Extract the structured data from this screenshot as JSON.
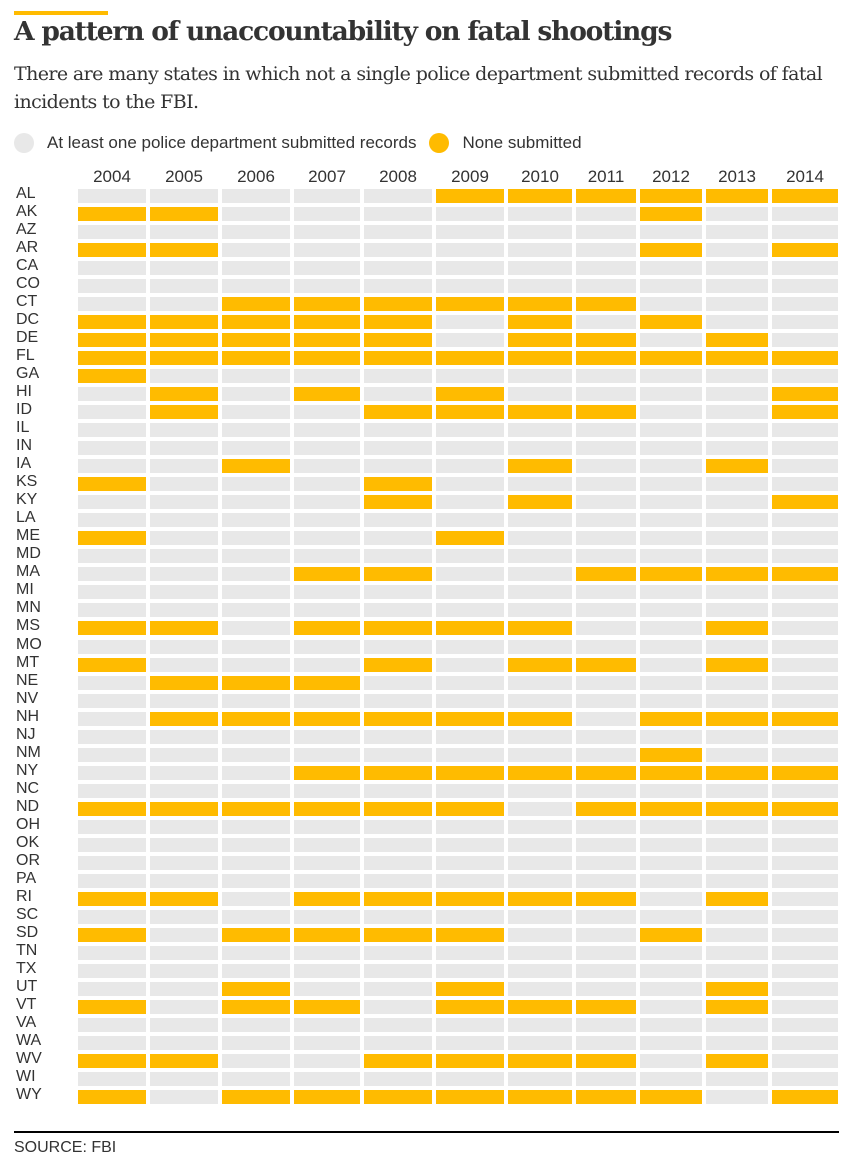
{
  "header": {
    "title": "A pattern of unaccountability on fatal shootings",
    "subtitle": "There are many states in which not a single police department submitted records of fatal incidents to the FBI."
  },
  "legend": {
    "items": [
      {
        "label": "At least one police department submitted records",
        "color": "#e8e8e8"
      },
      {
        "label": "None submitted",
        "color": "#ffbb00"
      }
    ]
  },
  "footer": {
    "source": "SOURCE: FBI"
  },
  "colors": {
    "submitted": "#e8e8e8",
    "none_submitted": "#ffbb00",
    "accent": "#ffbb00"
  },
  "chart_data": {
    "type": "heatmap",
    "title": "A pattern of unaccountability on fatal shootings",
    "subtitle": "There are many states in which not a single police department submitted records of fatal incidents to the FBI.",
    "xlabel": "",
    "ylabel": "",
    "legend_position": "top-left",
    "value_legend": {
      "0": "At least one police department submitted records",
      "1": "None submitted"
    },
    "x": [
      "2004",
      "2005",
      "2006",
      "2007",
      "2008",
      "2009",
      "2010",
      "2011",
      "2012",
      "2013",
      "2014"
    ],
    "y": [
      "AL",
      "AK",
      "AZ",
      "AR",
      "CA",
      "CO",
      "CT",
      "DC",
      "DE",
      "FL",
      "GA",
      "HI",
      "ID",
      "IL",
      "IN",
      "IA",
      "KS",
      "KY",
      "LA",
      "ME",
      "MD",
      "MA",
      "MI",
      "MN",
      "MS",
      "MO",
      "MT",
      "NE",
      "NV",
      "NH",
      "NJ",
      "NM",
      "NY",
      "NC",
      "ND",
      "OH",
      "OK",
      "OR",
      "PA",
      "RI",
      "SC",
      "SD",
      "TN",
      "TX",
      "UT",
      "VT",
      "VA",
      "WA",
      "WV",
      "WI",
      "WY"
    ],
    "values": [
      [
        0,
        0,
        0,
        0,
        0,
        1,
        1,
        1,
        1,
        1,
        1
      ],
      [
        1,
        1,
        0,
        0,
        0,
        0,
        0,
        0,
        1,
        0,
        0
      ],
      [
        0,
        0,
        0,
        0,
        0,
        0,
        0,
        0,
        0,
        0,
        0
      ],
      [
        1,
        1,
        0,
        0,
        0,
        0,
        0,
        0,
        1,
        0,
        1
      ],
      [
        0,
        0,
        0,
        0,
        0,
        0,
        0,
        0,
        0,
        0,
        0
      ],
      [
        0,
        0,
        0,
        0,
        0,
        0,
        0,
        0,
        0,
        0,
        0
      ],
      [
        0,
        0,
        1,
        1,
        1,
        1,
        1,
        1,
        0,
        0,
        0
      ],
      [
        1,
        1,
        1,
        1,
        1,
        0,
        1,
        0,
        1,
        0,
        0
      ],
      [
        1,
        1,
        1,
        1,
        1,
        0,
        1,
        1,
        0,
        1,
        0
      ],
      [
        1,
        1,
        1,
        1,
        1,
        1,
        1,
        1,
        1,
        1,
        1
      ],
      [
        1,
        0,
        0,
        0,
        0,
        0,
        0,
        0,
        0,
        0,
        0
      ],
      [
        0,
        1,
        0,
        1,
        0,
        1,
        0,
        0,
        0,
        0,
        1
      ],
      [
        0,
        1,
        0,
        0,
        1,
        1,
        1,
        1,
        0,
        0,
        1
      ],
      [
        0,
        0,
        0,
        0,
        0,
        0,
        0,
        0,
        0,
        0,
        0
      ],
      [
        0,
        0,
        0,
        0,
        0,
        0,
        0,
        0,
        0,
        0,
        0
      ],
      [
        0,
        0,
        1,
        0,
        0,
        0,
        1,
        0,
        0,
        1,
        0
      ],
      [
        1,
        0,
        0,
        0,
        1,
        0,
        0,
        0,
        0,
        0,
        0
      ],
      [
        0,
        0,
        0,
        0,
        1,
        0,
        1,
        0,
        0,
        0,
        1
      ],
      [
        0,
        0,
        0,
        0,
        0,
        0,
        0,
        0,
        0,
        0,
        0
      ],
      [
        1,
        0,
        0,
        0,
        0,
        1,
        0,
        0,
        0,
        0,
        0
      ],
      [
        0,
        0,
        0,
        0,
        0,
        0,
        0,
        0,
        0,
        0,
        0
      ],
      [
        0,
        0,
        0,
        1,
        1,
        0,
        0,
        1,
        1,
        1,
        1
      ],
      [
        0,
        0,
        0,
        0,
        0,
        0,
        0,
        0,
        0,
        0,
        0
      ],
      [
        0,
        0,
        0,
        0,
        0,
        0,
        0,
        0,
        0,
        0,
        0
      ],
      [
        1,
        1,
        0,
        1,
        1,
        1,
        1,
        0,
        0,
        1,
        0
      ],
      [
        0,
        0,
        0,
        0,
        0,
        0,
        0,
        0,
        0,
        0,
        0
      ],
      [
        1,
        0,
        0,
        0,
        1,
        0,
        1,
        1,
        0,
        1,
        0
      ],
      [
        0,
        1,
        1,
        1,
        0,
        0,
        0,
        0,
        0,
        0,
        0
      ],
      [
        0,
        0,
        0,
        0,
        0,
        0,
        0,
        0,
        0,
        0,
        0
      ],
      [
        0,
        1,
        1,
        1,
        1,
        1,
        1,
        0,
        1,
        1,
        1
      ],
      [
        0,
        0,
        0,
        0,
        0,
        0,
        0,
        0,
        0,
        0,
        0
      ],
      [
        0,
        0,
        0,
        0,
        0,
        0,
        0,
        0,
        1,
        0,
        0
      ],
      [
        0,
        0,
        0,
        1,
        1,
        1,
        1,
        1,
        1,
        1,
        1
      ],
      [
        0,
        0,
        0,
        0,
        0,
        0,
        0,
        0,
        0,
        0,
        0
      ],
      [
        1,
        1,
        1,
        1,
        1,
        1,
        0,
        1,
        1,
        1,
        1
      ],
      [
        0,
        0,
        0,
        0,
        0,
        0,
        0,
        0,
        0,
        0,
        0
      ],
      [
        0,
        0,
        0,
        0,
        0,
        0,
        0,
        0,
        0,
        0,
        0
      ],
      [
        0,
        0,
        0,
        0,
        0,
        0,
        0,
        0,
        0,
        0,
        0
      ],
      [
        0,
        0,
        0,
        0,
        0,
        0,
        0,
        0,
        0,
        0,
        0
      ],
      [
        1,
        1,
        0,
        1,
        1,
        1,
        1,
        1,
        0,
        1,
        0
      ],
      [
        0,
        0,
        0,
        0,
        0,
        0,
        0,
        0,
        0,
        0,
        0
      ],
      [
        1,
        0,
        1,
        1,
        1,
        1,
        0,
        0,
        1,
        0,
        0
      ],
      [
        0,
        0,
        0,
        0,
        0,
        0,
        0,
        0,
        0,
        0,
        0
      ],
      [
        0,
        0,
        0,
        0,
        0,
        0,
        0,
        0,
        0,
        0,
        0
      ],
      [
        0,
        0,
        1,
        0,
        0,
        1,
        0,
        0,
        0,
        1,
        0
      ],
      [
        1,
        0,
        1,
        1,
        0,
        1,
        1,
        1,
        0,
        1,
        0
      ],
      [
        0,
        0,
        0,
        0,
        0,
        0,
        0,
        0,
        0,
        0,
        0
      ],
      [
        0,
        0,
        0,
        0,
        0,
        0,
        0,
        0,
        0,
        0,
        0
      ],
      [
        1,
        1,
        0,
        0,
        1,
        1,
        1,
        1,
        0,
        1,
        0
      ],
      [
        0,
        0,
        0,
        0,
        0,
        0,
        0,
        0,
        0,
        0,
        0
      ],
      [
        1,
        0,
        1,
        1,
        1,
        1,
        1,
        1,
        1,
        0,
        1
      ]
    ]
  }
}
